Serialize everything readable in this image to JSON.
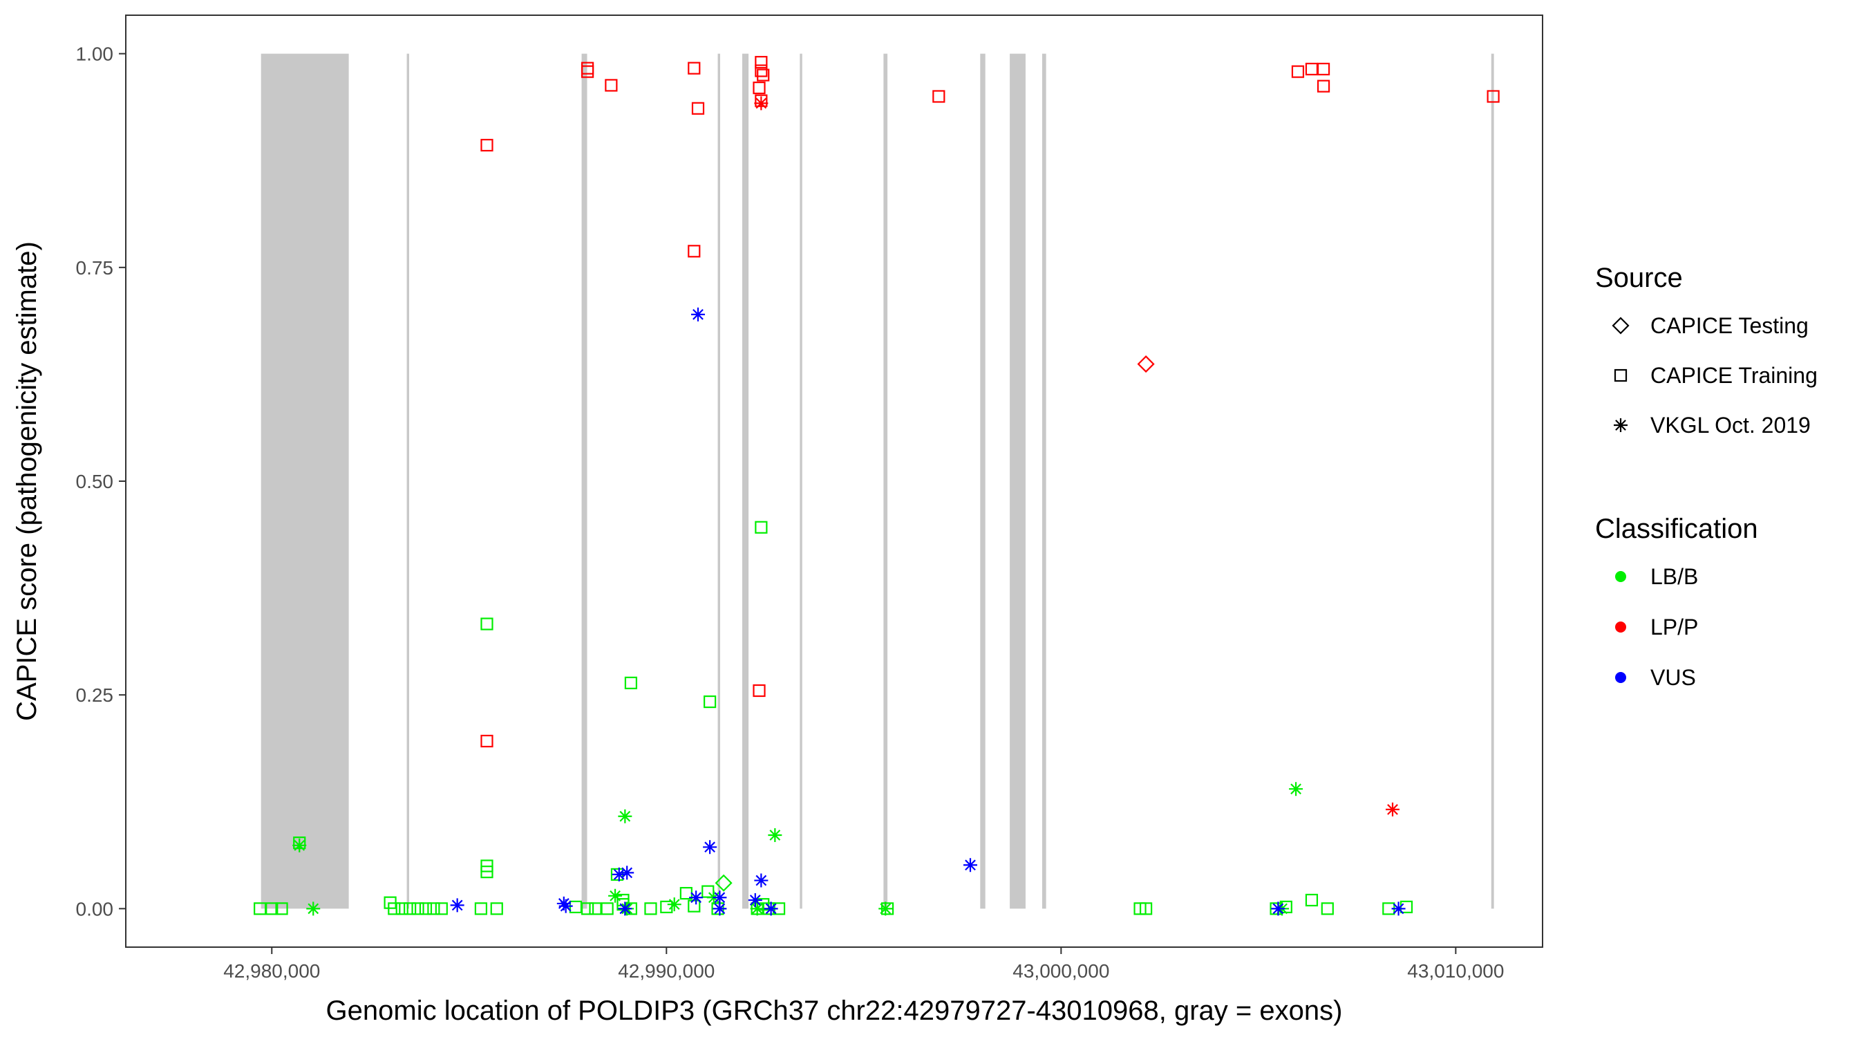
{
  "chart_data": {
    "type": "scatter",
    "xlabel": "Genomic location of POLDIP3 (GRCh37 chr22:42979727-43010968, gray = exons)",
    "ylabel": "CAPICE score (pathogenicity estimate)",
    "xlim": [
      42976300,
      43012200
    ],
    "ylim": [
      -0.045,
      1.045
    ],
    "x_ticks": [
      {
        "value": 42980000,
        "label": "42,980,000"
      },
      {
        "value": 42990000,
        "label": "42,990,000"
      },
      {
        "value": 43000000,
        "label": "43,000,000"
      },
      {
        "value": 43010000,
        "label": "43,010,000"
      }
    ],
    "y_ticks": [
      {
        "value": 0.0,
        "label": "0.00"
      },
      {
        "value": 0.25,
        "label": "0.25"
      },
      {
        "value": 0.5,
        "label": "0.50"
      },
      {
        "value": 0.75,
        "label": "0.75"
      },
      {
        "value": 1.0,
        "label": "1.00"
      }
    ],
    "grid": false,
    "exons": [
      [
        42979727,
        42981950
      ],
      [
        42983420,
        42983480
      ],
      [
        42987850,
        42987990
      ],
      [
        42991300,
        42991360
      ],
      [
        42991920,
        42992080
      ],
      [
        42993380,
        42993440
      ],
      [
        42995500,
        42995600
      ],
      [
        42997950,
        42998080
      ],
      [
        42998700,
        42999100
      ],
      [
        42999520,
        42999620
      ],
      [
        43010900,
        43010968
      ]
    ],
    "legend": {
      "position": "right",
      "source_title": "Source",
      "source_items": [
        {
          "label": "CAPICE Testing",
          "shape": "diamond"
        },
        {
          "label": "CAPICE Training",
          "shape": "square"
        },
        {
          "label": "VKGL Oct. 2019",
          "shape": "asterisk"
        }
      ],
      "class_title": "Classification",
      "class_items": [
        {
          "label": "LB/B",
          "color": "#00ee00"
        },
        {
          "label": "LP/P",
          "color": "#ff0000"
        },
        {
          "label": "VUS",
          "color": "#0000ff"
        }
      ]
    },
    "series": [
      {
        "class": "LP/P",
        "source": "CAPICE Training",
        "shape": "square",
        "color": "#ff0000",
        "points": [
          [
            42985450,
            0.893
          ],
          [
            42985450,
            0.196
          ],
          [
            42988000,
            0.983
          ],
          [
            42988000,
            0.979
          ],
          [
            42988600,
            0.963
          ],
          [
            42990700,
            0.983
          ],
          [
            42990800,
            0.936
          ],
          [
            42990700,
            0.769
          ],
          [
            42992400,
            0.99
          ],
          [
            42992400,
            0.98
          ],
          [
            42992450,
            0.975
          ],
          [
            42992350,
            0.96
          ],
          [
            42992400,
            0.945
          ],
          [
            42992350,
            0.255
          ],
          [
            42996900,
            0.95
          ],
          [
            43006000,
            0.979
          ],
          [
            43006350,
            0.982
          ],
          [
            43006650,
            0.982
          ],
          [
            43006650,
            0.962
          ],
          [
            43010950,
            0.95
          ]
        ]
      },
      {
        "class": "LP/P",
        "source": "CAPICE Testing",
        "shape": "diamond",
        "color": "#ff0000",
        "points": [
          [
            43002150,
            0.637
          ]
        ]
      },
      {
        "class": "LP/P",
        "source": "VKGL Oct. 2019",
        "shape": "asterisk",
        "color": "#ff0000",
        "points": [
          [
            42992400,
            0.942
          ],
          [
            43008400,
            0.116
          ]
        ]
      },
      {
        "class": "LB/B",
        "source": "CAPICE Training",
        "shape": "square",
        "color": "#00ee00",
        "points": [
          [
            42979700,
            0.0
          ],
          [
            42980000,
            0.0
          ],
          [
            42980250,
            0.0
          ],
          [
            42980700,
            0.077
          ],
          [
            42983000,
            0.007
          ],
          [
            42983100,
            0.0
          ],
          [
            42983300,
            0.0
          ],
          [
            42983500,
            0.0
          ],
          [
            42983700,
            0.0
          ],
          [
            42983900,
            0.0
          ],
          [
            42984100,
            0.0
          ],
          [
            42984300,
            0.0
          ],
          [
            42985300,
            0.0
          ],
          [
            42985450,
            0.333
          ],
          [
            42985450,
            0.05
          ],
          [
            42985450,
            0.043
          ],
          [
            42985700,
            0.0
          ],
          [
            42987700,
            0.002
          ],
          [
            42988000,
            0.0
          ],
          [
            42988200,
            0.0
          ],
          [
            42988500,
            0.0
          ],
          [
            42988750,
            0.04
          ],
          [
            42988900,
            0.01
          ],
          [
            42988900,
            0.005
          ],
          [
            42989100,
            0.264
          ],
          [
            42989100,
            0.0
          ],
          [
            42989600,
            0.0
          ],
          [
            42990000,
            0.002
          ],
          [
            42990500,
            0.018
          ],
          [
            42990700,
            0.003
          ],
          [
            42991100,
            0.242
          ],
          [
            42991050,
            0.02
          ],
          [
            42991300,
            0.0
          ],
          [
            42992400,
            0.446
          ],
          [
            42992300,
            0.0
          ],
          [
            42992450,
            0.005
          ],
          [
            42992600,
            0.0
          ],
          [
            42992850,
            0.0
          ],
          [
            42995600,
            0.0
          ],
          [
            43002000,
            0.0
          ],
          [
            43002150,
            0.0
          ],
          [
            43005450,
            0.0
          ],
          [
            43005700,
            0.002
          ],
          [
            43006350,
            0.01
          ],
          [
            43006750,
            0.0
          ],
          [
            43008300,
            0.0
          ],
          [
            43008750,
            0.002
          ]
        ]
      },
      {
        "class": "LB/B",
        "source": "CAPICE Testing",
        "shape": "diamond",
        "color": "#00ee00",
        "points": [
          [
            42991450,
            0.03
          ]
        ]
      },
      {
        "class": "LB/B",
        "source": "VKGL Oct. 2019",
        "shape": "asterisk",
        "color": "#00ee00",
        "points": [
          [
            42980700,
            0.074
          ],
          [
            42981050,
            0.0
          ],
          [
            42988700,
            0.015
          ],
          [
            42988950,
            0.108
          ],
          [
            42989000,
            0.0
          ],
          [
            42990200,
            0.005
          ],
          [
            42991200,
            0.013
          ],
          [
            42992300,
            0.0
          ],
          [
            42992750,
            0.086
          ],
          [
            42995550,
            0.0
          ],
          [
            43005950,
            0.14
          ],
          [
            43005600,
            0.0
          ]
        ]
      },
      {
        "class": "VUS",
        "source": "VKGL Oct. 2019",
        "shape": "asterisk",
        "color": "#0000ff",
        "points": [
          [
            42984700,
            0.004
          ],
          [
            42987400,
            0.006
          ],
          [
            42987450,
            0.003
          ],
          [
            42988800,
            0.04
          ],
          [
            42989000,
            0.042
          ],
          [
            42988950,
            0.0
          ],
          [
            42990800,
            0.695
          ],
          [
            42990750,
            0.013
          ],
          [
            42991100,
            0.072
          ],
          [
            42991350,
            0.013
          ],
          [
            42991350,
            0.0
          ],
          [
            42992250,
            0.01
          ],
          [
            42992400,
            0.033
          ],
          [
            42992650,
            0.0
          ],
          [
            42997700,
            0.051
          ],
          [
            43005500,
            0.0
          ],
          [
            43008550,
            0.0
          ]
        ]
      }
    ]
  }
}
